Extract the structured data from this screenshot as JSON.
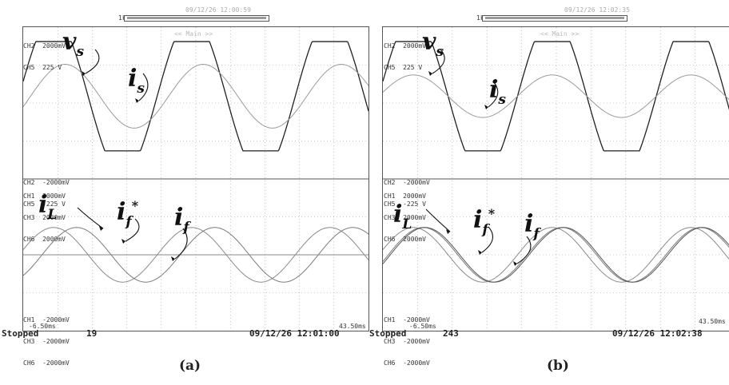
{
  "chart_data": [
    {
      "type": "line",
      "panel_caption": "(a)",
      "header": {
        "zoom_label": "1k",
        "timestamp": "09/12/26 12:00:59",
        "zoom_mode": "<< Main >>"
      },
      "x_range_ms": [
        -6.5,
        43.5
      ],
      "x_start_label": "-6.50ms",
      "x_end_label": "43.50ms",
      "grid": true,
      "status": "Stopped",
      "acq_count": "19",
      "datetime": "09/12/26 12:01:00",
      "top_scales": [
        "CH2  2000mV",
        "CH5  225 V"
      ],
      "top_bottom_scales": [
        "CH2  -2000mV",
        "CH5  -225 V"
      ],
      "bottom_scales": [
        "CH1  2000mV",
        "CH3  2000mV",
        "CH6  2000mV"
      ],
      "bottom_bottom_scales": [
        "CH1  -2000mV",
        "CH3  -2000mV",
        "CH6  -2000mV"
      ],
      "series": [
        {
          "name": "v_s",
          "label_main": "v",
          "label_sub": "s",
          "waveform": "clipped-sine",
          "amplitude": 0.72,
          "phase_deg": 0,
          "color": "#222222"
        },
        {
          "name": "i_s",
          "label_main": "i",
          "label_sub": "s",
          "waveform": "sine",
          "amplitude": 0.42,
          "phase_deg": -30,
          "color": "#9a9a9a"
        },
        {
          "name": "i_L",
          "label_main": "i",
          "label_sub": "L",
          "waveform": "sine",
          "amplitude": 0.36,
          "phase_deg": 0,
          "color": "#8a8a8a"
        },
        {
          "name": "i_f*",
          "label_main": "i",
          "label_sub": "f",
          "label_sup": "*",
          "waveform": "sine",
          "amplitude": 0.36,
          "phase_deg": -60,
          "color": "#7a7a7a"
        },
        {
          "name": "i_f",
          "label_main": "i",
          "label_sub": "f",
          "waveform": "flat",
          "amplitude": 0.0,
          "phase_deg": 0,
          "color": "#8a8a8a"
        }
      ]
    },
    {
      "type": "line",
      "panel_caption": "(b)",
      "header": {
        "zoom_label": "1k",
        "timestamp": "09/12/26 12:02:35",
        "zoom_mode": "<< Main >>"
      },
      "x_range_ms": [
        -6.5,
        43.5
      ],
      "x_start_label": "-6.50ms",
      "x_end_label": "43.50ms",
      "grid": true,
      "status": "Stopped",
      "acq_count": "243",
      "datetime": "09/12/26 12:02:38",
      "top_scales": [
        "CH2  2000mV",
        "CH5  225 V"
      ],
      "top_bottom_scales": [
        "CH2  -2000mV",
        "CH5  -225 V"
      ],
      "bottom_scales": [
        "CH1  2000mV",
        "CH3  2000mV",
        "CH6  2000mV"
      ],
      "bottom_bottom_scales": [
        "CH1  -2000mV",
        "CH3  -2000mV",
        "CH6  -2000mV"
      ],
      "series": [
        {
          "name": "v_s",
          "label_main": "v",
          "label_sub": "s",
          "waveform": "clipped-sine",
          "amplitude": 0.72,
          "phase_deg": 0,
          "color": "#222222"
        },
        {
          "name": "i_s",
          "label_main": "i",
          "label_sub": "s",
          "waveform": "sine",
          "amplitude": 0.28,
          "phase_deg": 0,
          "color": "#9a9a9a"
        },
        {
          "name": "i_L",
          "label_main": "i",
          "label_sub": "L",
          "waveform": "sine",
          "amplitude": 0.36,
          "phase_deg": 0,
          "color": "#8a8a8a"
        },
        {
          "name": "i_f*",
          "label_main": "i",
          "label_sub": "f",
          "label_sup": "*",
          "waveform": "sine",
          "amplitude": 0.36,
          "phase_deg": -25,
          "color": "#7a7a7a"
        },
        {
          "name": "i_f",
          "label_main": "i",
          "label_sub": "f",
          "waveform": "sine",
          "amplitude": 0.36,
          "phase_deg": -30,
          "color": "#555555"
        }
      ]
    }
  ]
}
